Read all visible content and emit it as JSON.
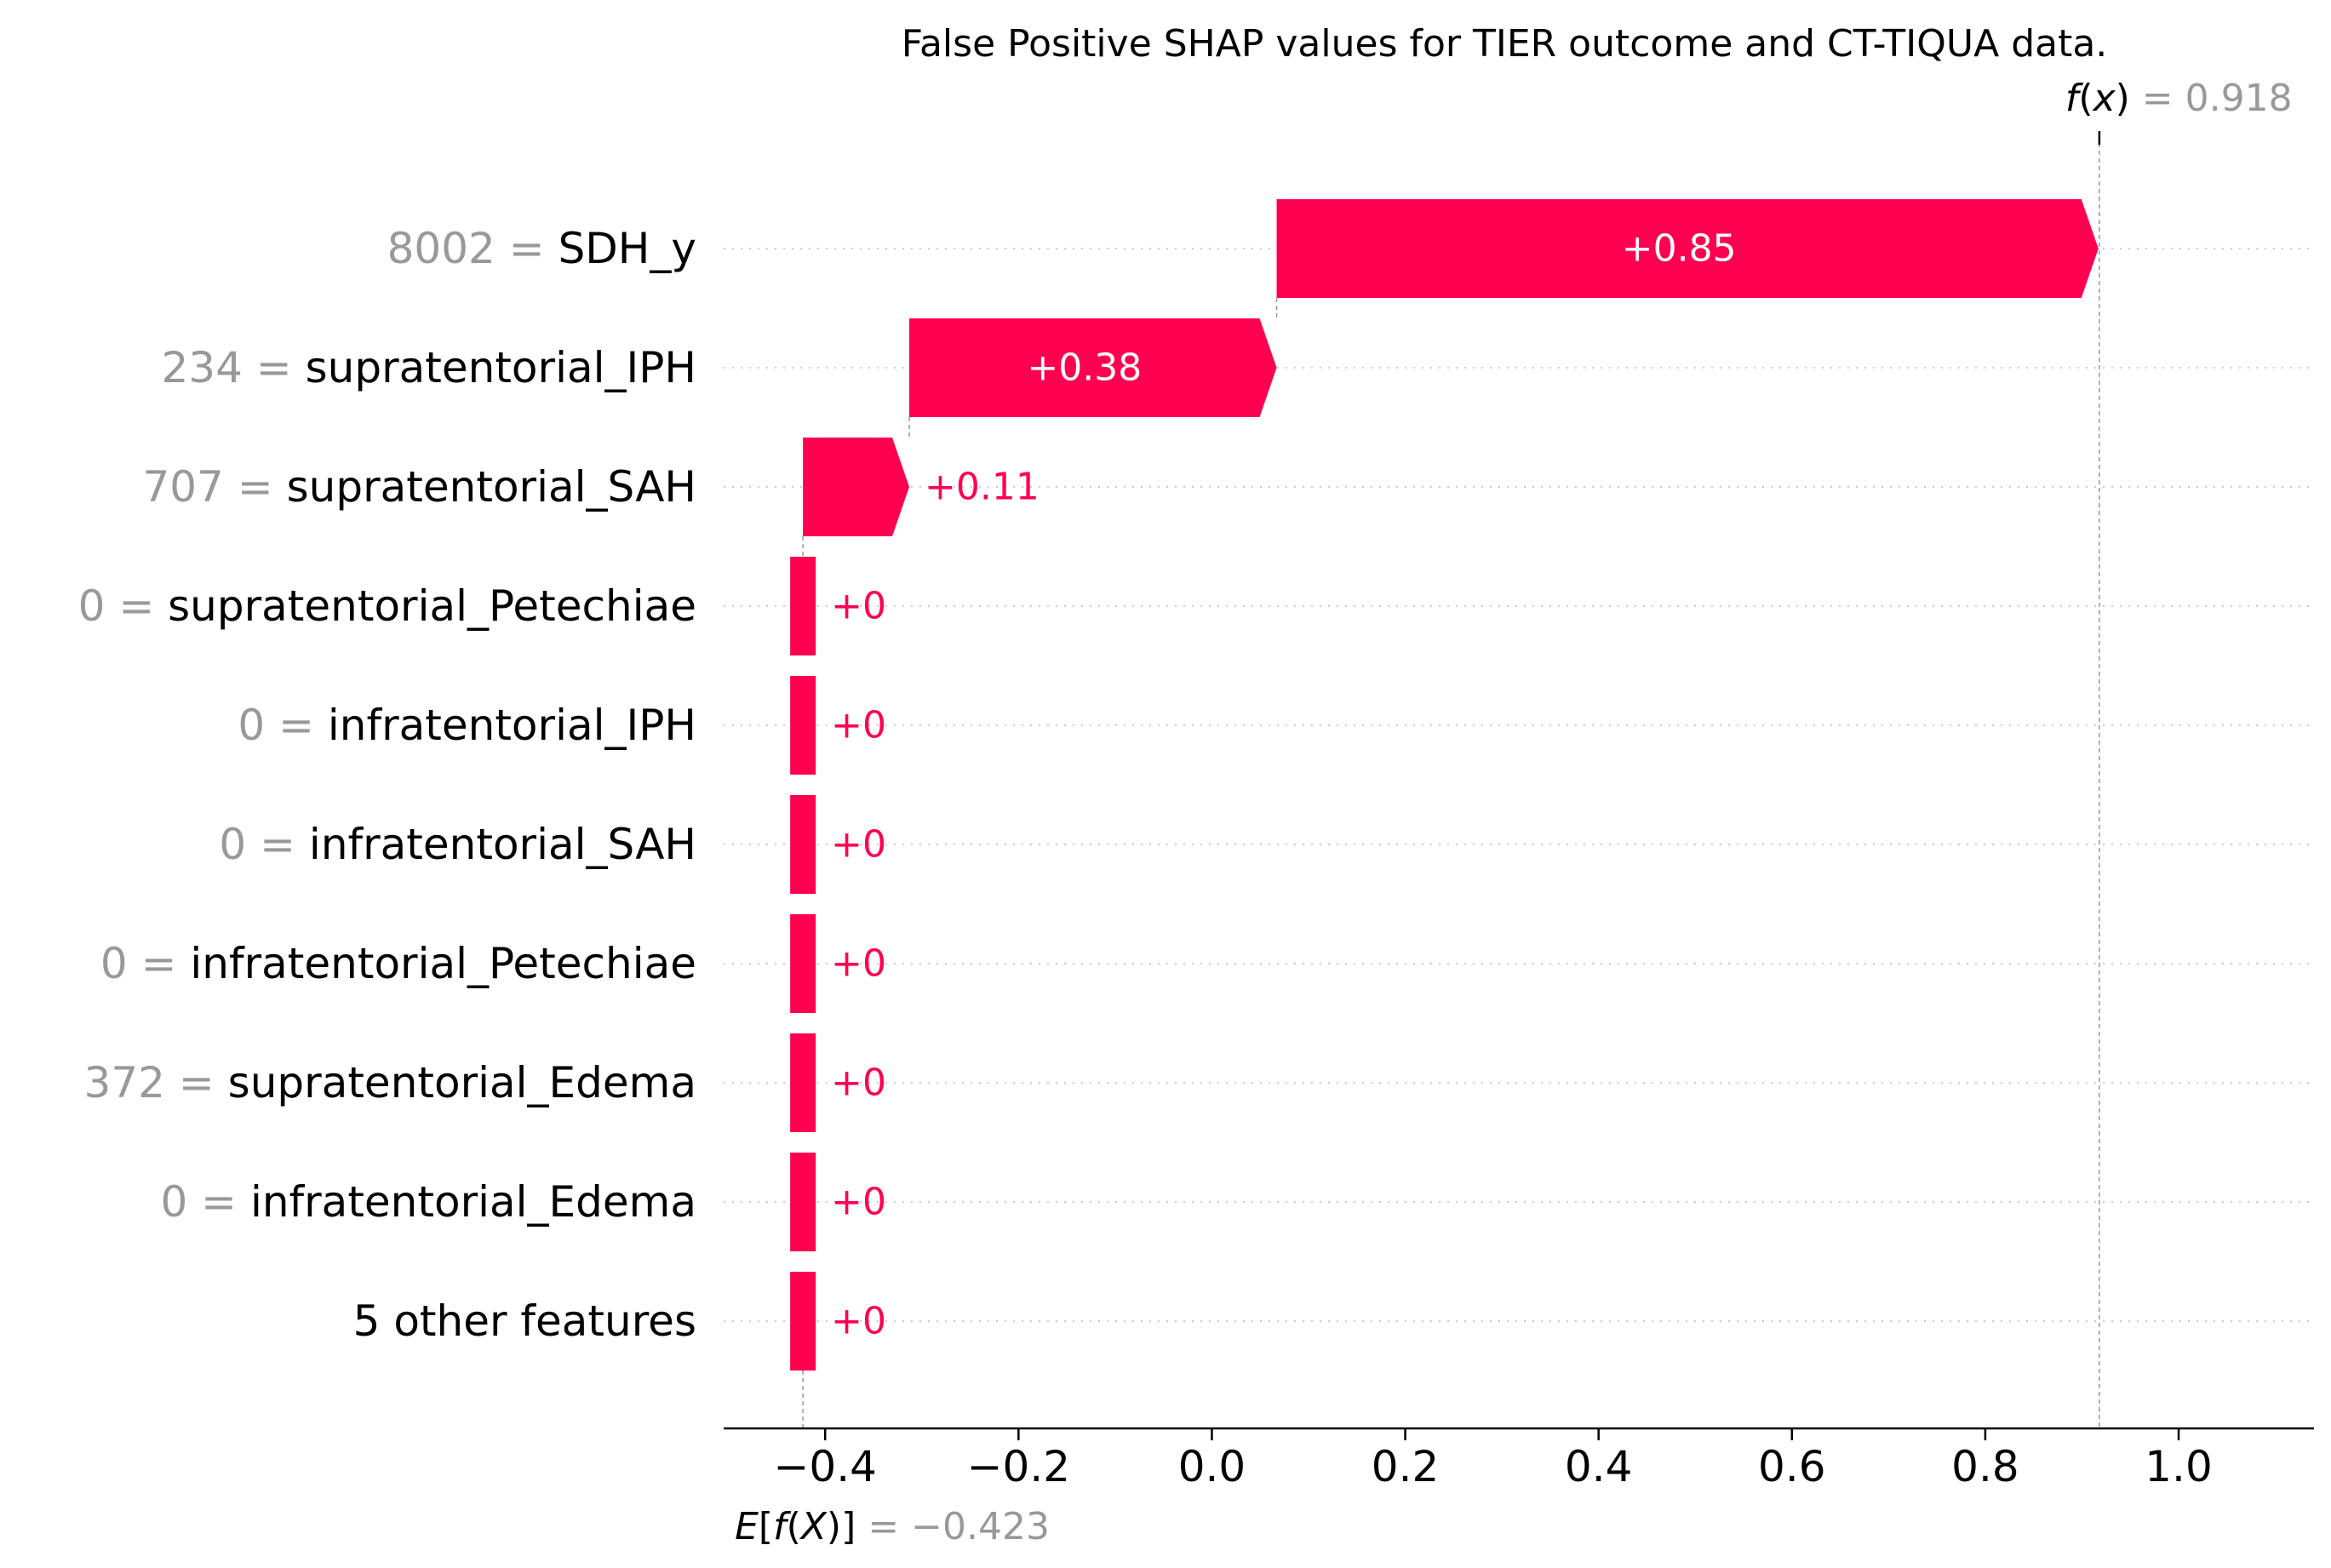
{
  "chart_data": {
    "type": "bar",
    "subtype": "shap-waterfall",
    "title": "False Positive SHAP values for TIER outcome and CT-TIQUA data.",
    "base_value": -0.423,
    "base_value_label": "−",
    "base_value_text": "−0.423",
    "output_value": 0.918,
    "output_value_text": "0.918",
    "output_label_parts": [
      "f",
      "(",
      "x",
      ")"
    ],
    "base_label_parts": [
      "E",
      "[",
      "f",
      "(",
      "X",
      ")",
      "]"
    ],
    "features": [
      {
        "value": "8002",
        "name": "SDH_y",
        "contribution": 0.85,
        "label": "+0.85"
      },
      {
        "value": "234",
        "name": "supratentorial_IPH",
        "contribution": 0.38,
        "label": "+0.38"
      },
      {
        "value": "707",
        "name": "supratentorial_SAH",
        "contribution": 0.11,
        "label": "+0.11"
      },
      {
        "value": "0",
        "name": "supratentorial_Petechiae",
        "contribution": 0,
        "label": "+0"
      },
      {
        "value": "0",
        "name": "infratentorial_IPH",
        "contribution": 0,
        "label": "+0"
      },
      {
        "value": "0",
        "name": "infratentorial_SAH",
        "contribution": 0,
        "label": "+0"
      },
      {
        "value": "0",
        "name": "infratentorial_Petechiae",
        "contribution": 0,
        "label": "+0"
      },
      {
        "value": "372",
        "name": "supratentorial_Edema",
        "contribution": 0,
        "label": "+0"
      },
      {
        "value": "0",
        "name": "infratentorial_Edema",
        "contribution": 0,
        "label": "+0"
      },
      {
        "value": "",
        "name": "5 other features",
        "contribution": 0,
        "label": "+0"
      }
    ],
    "xticks": [
      -0.4,
      -0.2,
      0.0,
      0.2,
      0.4,
      0.6,
      0.8,
      1.0
    ],
    "xtick_labels": [
      "−0.4",
      "−0.2",
      "0.0",
      "0.2",
      "0.4",
      "0.6",
      "0.8",
      "1.0"
    ],
    "xlim": [
      -0.505,
      1.14
    ],
    "xlabel": "",
    "ylabel": "",
    "grid": "horizontal-dotted",
    "colors": {
      "positive": "#ff0051",
      "text": "#000000",
      "muted": "#999999",
      "gridline": "#cccccc",
      "axis": "#000000"
    }
  }
}
